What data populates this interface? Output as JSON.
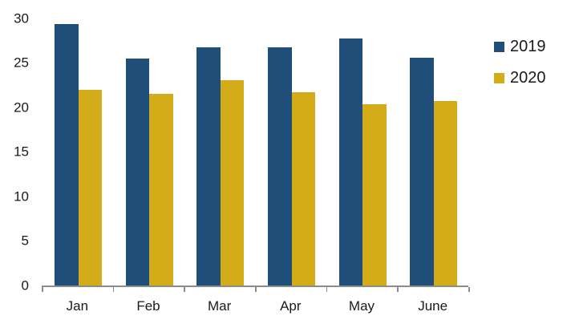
{
  "chart_data": {
    "type": "bar",
    "categories": [
      "Jan",
      "Feb",
      "Mar",
      "Apr",
      "May",
      "June"
    ],
    "series": [
      {
        "name": "2019",
        "color": "#1F4E79",
        "values": [
          29.3,
          25.5,
          26.7,
          26.7,
          27.7,
          25.6
        ]
      },
      {
        "name": "2020",
        "color": "#D4AC1A",
        "values": [
          22.0,
          21.5,
          23.0,
          21.7,
          20.3,
          20.7
        ]
      }
    ],
    "title": "",
    "xlabel": "",
    "ylabel": "",
    "ylim": [
      0,
      30
    ],
    "yticks": [
      0,
      5,
      10,
      15,
      20,
      25,
      30
    ],
    "grid": false,
    "legend_position": "right"
  },
  "colors": {
    "axis_line": "#8C8C8C",
    "tick_label": "#1A1A1A",
    "background": "#FFFFFF"
  }
}
